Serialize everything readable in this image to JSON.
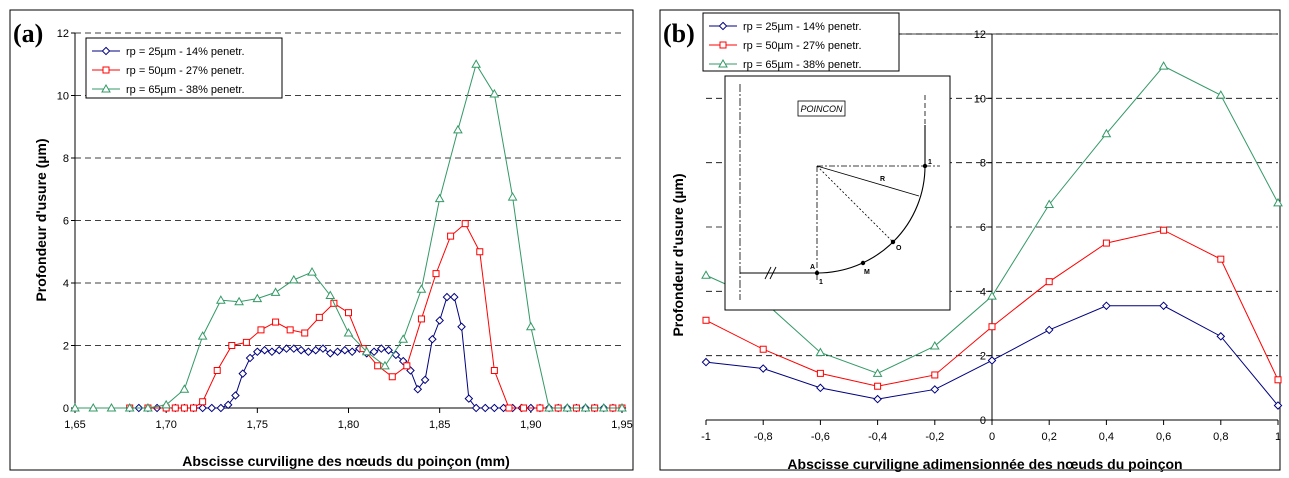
{
  "chart_data": [
    {
      "type": "line",
      "panel_label": "(a)",
      "xlabel": "Abscisse curviligne des nœuds du poinçon (mm)",
      "ylabel": "Profondeur d'usure (µm)",
      "xlim": [
        1.65,
        1.95
      ],
      "ylim": [
        0,
        12
      ],
      "x_ticks": [
        "1,65",
        "1,70",
        "1,75",
        "1,80",
        "1,85",
        "1,90",
        "1,95"
      ],
      "y_ticks": [
        "0",
        "2",
        "4",
        "6",
        "8",
        "10",
        "12"
      ],
      "grid": "horizontal dashed",
      "legend_position": "top-left",
      "series": [
        {
          "name": "rp = 25µm - 14% penetr.",
          "color": "#000080",
          "marker": "diamond",
          "x": [
            1.68,
            1.685,
            1.69,
            1.695,
            1.7,
            1.705,
            1.71,
            1.715,
            1.72,
            1.725,
            1.73,
            1.734,
            1.738,
            1.742,
            1.746,
            1.75,
            1.754,
            1.758,
            1.762,
            1.766,
            1.77,
            1.774,
            1.778,
            1.782,
            1.786,
            1.79,
            1.794,
            1.798,
            1.802,
            1.806,
            1.81,
            1.814,
            1.818,
            1.822,
            1.826,
            1.83,
            1.834,
            1.838,
            1.842,
            1.846,
            1.85,
            1.854,
            1.858,
            1.862,
            1.866,
            1.87,
            1.875,
            1.88,
            1.885,
            1.89,
            1.895,
            1.9,
            1.905,
            1.91,
            1.915,
            1.92,
            1.925,
            1.93,
            1.935,
            1.94,
            1.945,
            1.95
          ],
          "y": [
            0,
            0,
            0,
            0,
            0,
            0,
            0,
            0,
            0,
            0,
            0,
            0.1,
            0.4,
            1.1,
            1.6,
            1.8,
            1.85,
            1.8,
            1.85,
            1.9,
            1.9,
            1.85,
            1.8,
            1.85,
            1.9,
            1.75,
            1.8,
            1.85,
            1.8,
            1.9,
            1.75,
            1.8,
            1.9,
            1.85,
            1.7,
            1.5,
            1.2,
            0.6,
            0.9,
            2.2,
            2.8,
            3.55,
            3.55,
            2.6,
            0.3,
            0,
            0,
            0,
            0,
            0,
            0,
            0,
            0,
            0,
            0,
            0,
            0,
            0,
            0,
            0,
            0,
            0
          ]
        },
        {
          "name": "rp = 50µm - 27% penetr.",
          "color": "#ff0000",
          "marker": "square",
          "x": [
            1.68,
            1.69,
            1.7,
            1.705,
            1.71,
            1.715,
            1.72,
            1.728,
            1.736,
            1.744,
            1.752,
            1.76,
            1.768,
            1.776,
            1.784,
            1.792,
            1.8,
            1.808,
            1.816,
            1.824,
            1.832,
            1.84,
            1.848,
            1.856,
            1.864,
            1.872,
            1.88,
            1.888,
            1.896,
            1.905,
            1.915,
            1.925,
            1.935,
            1.945,
            1.95
          ],
          "y": [
            0,
            0,
            0,
            0,
            0,
            0,
            0.2,
            1.2,
            2.0,
            2.1,
            2.5,
            2.75,
            2.5,
            2.4,
            2.9,
            3.35,
            3.05,
            1.9,
            1.35,
            1.0,
            1.35,
            2.85,
            4.3,
            5.5,
            5.9,
            5.0,
            1.2,
            0,
            0,
            0,
            0,
            0,
            0,
            0,
            0
          ]
        },
        {
          "name": "rp = 65µm - 38% penetr.",
          "color": "#339966",
          "marker": "triangle",
          "x": [
            1.65,
            1.66,
            1.67,
            1.68,
            1.69,
            1.7,
            1.71,
            1.72,
            1.73,
            1.74,
            1.75,
            1.76,
            1.77,
            1.78,
            1.79,
            1.8,
            1.81,
            1.82,
            1.83,
            1.84,
            1.85,
            1.86,
            1.87,
            1.88,
            1.89,
            1.9,
            1.91,
            1.92,
            1.93,
            1.94,
            1.95
          ],
          "y": [
            0,
            0,
            0,
            0,
            0,
            0.1,
            0.6,
            2.3,
            3.45,
            3.4,
            3.5,
            3.7,
            4.1,
            4.35,
            3.6,
            2.4,
            1.8,
            1.35,
            2.2,
            3.8,
            6.7,
            8.9,
            11.0,
            10.05,
            6.75,
            2.6,
            0,
            0,
            0,
            0,
            0
          ]
        }
      ]
    },
    {
      "type": "line",
      "panel_label": "(b)",
      "xlabel": "Abscisse curviligne adimensionnée des nœuds du poinçon",
      "ylabel": "Profondeur d'usure (µm)",
      "xlim": [
        -1,
        1
      ],
      "ylim": [
        0,
        12
      ],
      "x_ticks": [
        "-1",
        "-0,8",
        "-0,6",
        "-0,4",
        "-0,2",
        "0",
        "0,2",
        "0,4",
        "0,6",
        "0,8",
        "1"
      ],
      "y_ticks": [
        "0",
        "2",
        "4",
        "6",
        "8",
        "10",
        "12"
      ],
      "grid": "horizontal dashed",
      "legend_position": "top-left",
      "series": [
        {
          "name": "rp = 25µm - 14% penetr.",
          "color": "#000080",
          "marker": "diamond",
          "x": [
            -1,
            -0.8,
            -0.6,
            -0.4,
            -0.2,
            0,
            0.2,
            0.4,
            0.6,
            0.8,
            1
          ],
          "y": [
            1.8,
            1.6,
            1.0,
            0.65,
            0.95,
            1.85,
            2.8,
            3.55,
            3.55,
            2.6,
            0.45
          ]
        },
        {
          "name": "rp = 50µm - 27% penetr.",
          "color": "#ff0000",
          "marker": "square",
          "x": [
            -1,
            -0.8,
            -0.6,
            -0.4,
            -0.2,
            0,
            0.2,
            0.4,
            0.6,
            0.8,
            1
          ],
          "y": [
            3.1,
            2.2,
            1.45,
            1.05,
            1.4,
            2.9,
            4.3,
            5.5,
            5.9,
            5.0,
            1.25
          ]
        },
        {
          "name": "rp = 65µm - 38% penetr.",
          "color": "#339966",
          "marker": "triangle",
          "x": [
            -1,
            -0.8,
            -0.6,
            -0.4,
            -0.2,
            0,
            0.2,
            0.4,
            0.6,
            0.8,
            1
          ],
          "y": [
            4.5,
            3.7,
            2.1,
            1.45,
            2.3,
            3.85,
            6.7,
            8.9,
            11.0,
            10.1,
            6.75
          ]
        }
      ],
      "inset": {
        "title": "POINCON",
        "label_r": "R",
        "label_a": "A",
        "label_m": "M",
        "label_o": "O",
        "label_1a": "1",
        "label_1b": "1"
      }
    }
  ]
}
